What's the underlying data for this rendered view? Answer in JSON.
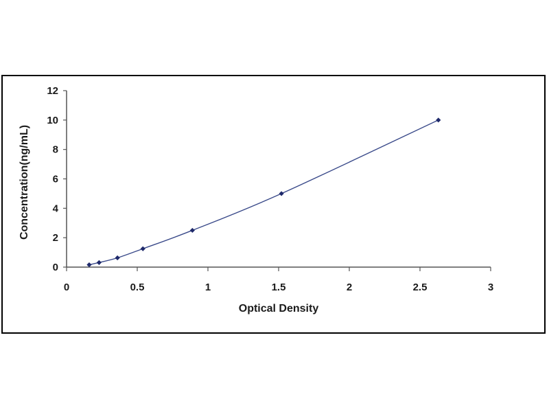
{
  "chart_data": {
    "type": "scatter",
    "title": "",
    "xlabel": "Optical Density",
    "ylabel": "Concentration(ng/mL)",
    "xlim": [
      0,
      3
    ],
    "ylim": [
      0,
      12
    ],
    "x_ticks": [
      "0",
      "0.5",
      "1",
      "1.5",
      "2",
      "2.5",
      "3"
    ],
    "y_ticks": [
      "0",
      "2",
      "4",
      "6",
      "8",
      "10",
      "12"
    ],
    "grid": false,
    "legend": "none",
    "trendline": "smooth curve",
    "series": [
      {
        "x": [
          0.16,
          0.23,
          0.36,
          0.54,
          0.89,
          1.52,
          2.63
        ],
        "y": [
          0.16,
          0.31,
          0.63,
          1.25,
          2.5,
          5,
          10
        ],
        "marker_color": "#1f2a6b",
        "line_color": "#3a4a8a"
      }
    ]
  }
}
